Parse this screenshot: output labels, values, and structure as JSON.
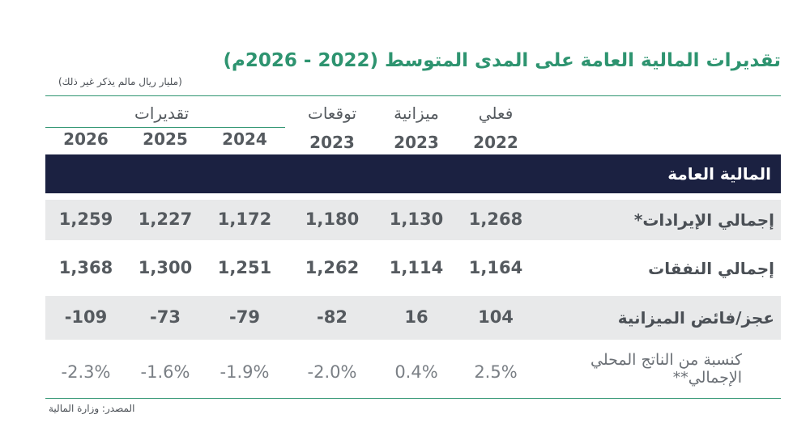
{
  "title": "تقديرات المالية العامة على المدى المتوسط (2022 - 2026م)",
  "unit_note": "(مليار ريال مالم يذكر غير ذلك)",
  "column_groups": {
    "actual": "فعلي",
    "budget": "ميزانية",
    "forecast": "توقعات",
    "estimates": "تقديرات"
  },
  "years": {
    "actual": "2022",
    "budget": "2023",
    "forecast": "2023",
    "est2024": "2024",
    "est2025": "2025",
    "est2026": "2026"
  },
  "section_title": "المالية العامة",
  "rows": [
    {
      "label": "إجمالي الإيرادات*",
      "values": [
        "1,268",
        "1,130",
        "1,180",
        "1,172",
        "1,227",
        "1,259"
      ]
    },
    {
      "label": "إجمالي النفقات",
      "values": [
        "1,164",
        "1,114",
        "1,262",
        "1,251",
        "1,300",
        "1,368"
      ]
    },
    {
      "label": "عجز/فائض الميزانية",
      "values": [
        "104",
        "16",
        "-82",
        "-79",
        "-73",
        "-109"
      ]
    },
    {
      "label_line1": "كنسبة من الناتج المحلي",
      "label_line2": "الإجمالي**",
      "values": [
        "2.5%",
        "0.4%",
        "-2.0%",
        "-1.9%",
        "-1.6%",
        "-2.3%"
      ]
    }
  ],
  "source": "المصدر: وزارة المالية",
  "colors": {
    "accent": "#2e9470",
    "band": "#1b2141",
    "shade": "#e8e9ea"
  }
}
